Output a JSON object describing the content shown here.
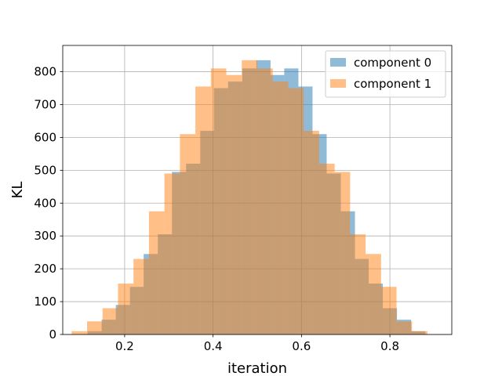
{
  "chart_data": {
    "type": "bar",
    "title": "",
    "xlabel": "iteration",
    "ylabel": "KL",
    "xlim": [
      0.06,
      0.94
    ],
    "ylim": [
      0,
      880
    ],
    "xticks": [
      "0.2",
      "0.4",
      "0.6",
      "0.8"
    ],
    "yticks": [
      "0",
      "100",
      "200",
      "300",
      "400",
      "500",
      "600",
      "700",
      "800"
    ],
    "grid": true,
    "legend_position": "top-right",
    "series": [
      {
        "name": "component 0",
        "color": "#1f77b4",
        "opacity": 0.5,
        "bin_edges": [
          0.116,
          0.148,
          0.18,
          0.212,
          0.243,
          0.275,
          0.307,
          0.339,
          0.371,
          0.402,
          0.434,
          0.466,
          0.498,
          0.53,
          0.561,
          0.593,
          0.625,
          0.657,
          0.689,
          0.721,
          0.752,
          0.784,
          0.816,
          0.848,
          0.88,
          0.912
        ],
        "values": [
          10,
          45,
          90,
          145,
          245,
          305,
          495,
          520,
          620,
          750,
          770,
          810,
          835,
          790,
          810,
          755,
          610,
          490,
          375,
          230,
          155,
          80,
          45,
          10,
          0
        ]
      },
      {
        "name": "component 1",
        "color": "#ff7f0e",
        "opacity": 0.5,
        "bin_edges": [
          0.08,
          0.115,
          0.15,
          0.185,
          0.22,
          0.255,
          0.29,
          0.325,
          0.36,
          0.395,
          0.43,
          0.465,
          0.5,
          0.535,
          0.57,
          0.605,
          0.64,
          0.675,
          0.71,
          0.745,
          0.78,
          0.815,
          0.85,
          0.885
        ],
        "values": [
          10,
          40,
          80,
          155,
          230,
          375,
          490,
          610,
          755,
          810,
          790,
          835,
          810,
          770,
          750,
          620,
          520,
          495,
          305,
          245,
          145,
          40,
          10
        ]
      }
    ]
  }
}
